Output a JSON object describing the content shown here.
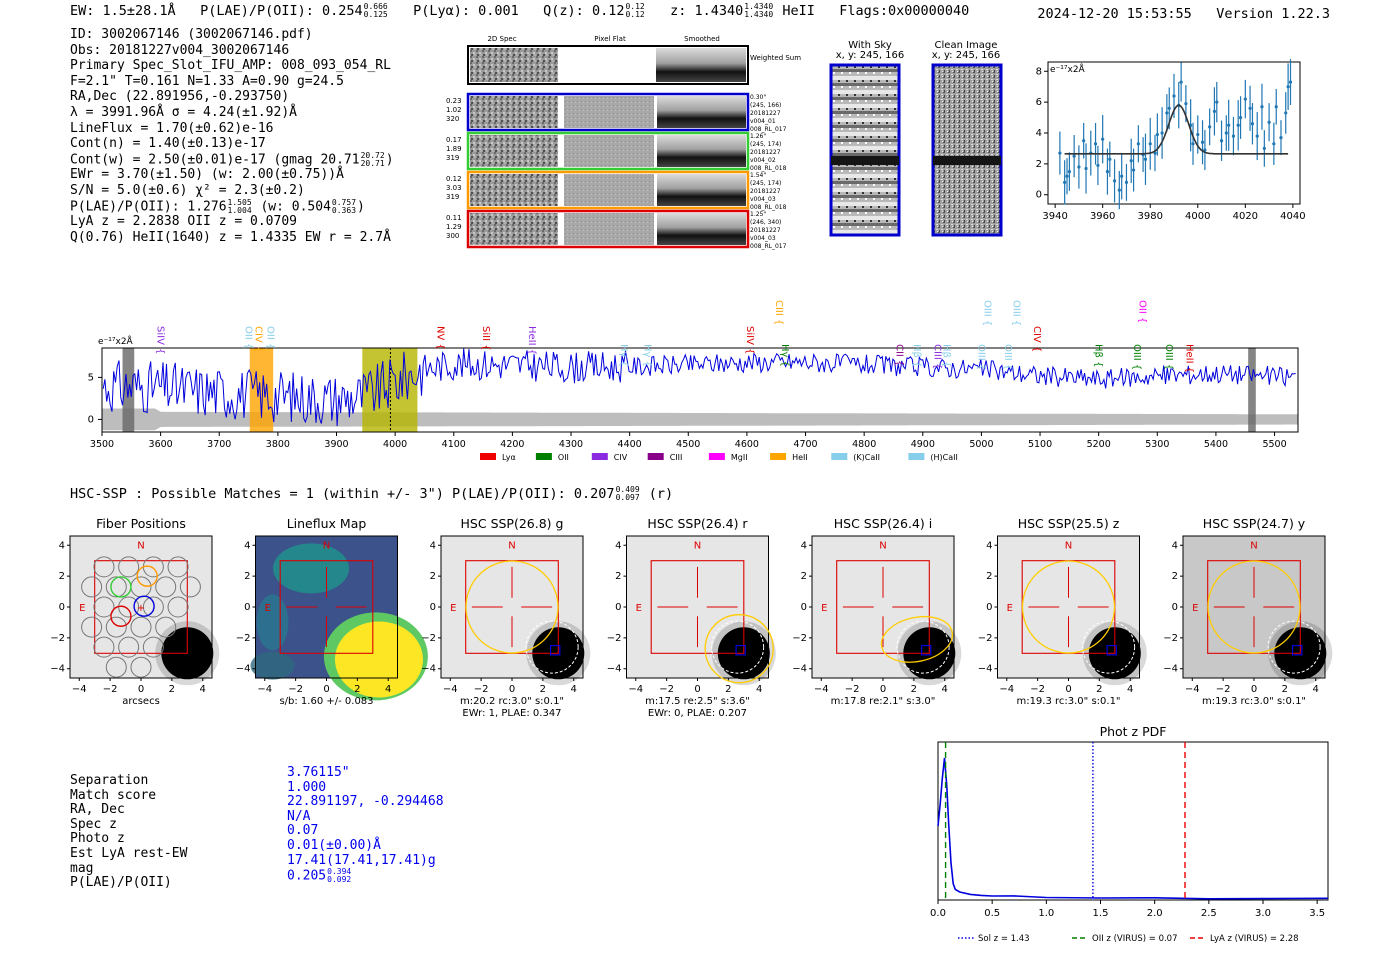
{
  "header": {
    "ew": "EW: 1.5±28.1Å",
    "plae_label": "P(LAE)/P(OII): 0.254",
    "plae_hi": "0.666",
    "plae_lo": "0.125",
    "plya": "P(Lyα): 0.001",
    "qz_label": "Q(z): 0.12",
    "qz_hi": "0.12",
    "qz_lo": "0.12",
    "z_label": "z: 1.4340",
    "z_hi": "1.4340",
    "z_lo": "1.4340",
    "z_tail": "HeII",
    "flags": "Flags:0x00000040",
    "timestamp": "2024-12-20 15:53:55",
    "version": "Version 1.22.3"
  },
  "info": {
    "id": "ID: 3002067146 (3002067146.pdf)",
    "obs": "Obs: 20181227v004_3002067146",
    "primary": "Primary Spec_Slot_IFU_AMP: 008_093_054_RL",
    "fparams": "F=2.1\"  T=0.161  N=1.33  A=0.90  g=24.5",
    "radec": "RA,Dec (22.891956,-0.293750)",
    "lambda": "λ = 3991.96Å  σ = 4.24(±1.92)Å",
    "lineflux": "LineFlux = 1.70(±0.62)e-16",
    "contn": "Cont(n) = 1.40(±0.13)e-17",
    "contw": "Cont(w) = 2.50(±0.01)e-17 (gmag 20.71",
    "contw_hi": "20.72",
    "contw_lo": "20.71",
    "ewr": "EWr = 3.70(±1.50) (w: 2.00(±0.75))Å",
    "sn": "S/N = 5.0(±0.6)  χ² = 2.3(±0.2)",
    "plae": "P(LAE)/P(OII): 1.276",
    "plae_hi": "1.505",
    "plae_lo": "1.004",
    "plae_w": "(w: 0.504",
    "plae_w_hi": "0.757",
    "plae_w_lo": "0.363",
    "lya": "LyA z = 2.2838   OII z = 0.0709",
    "q": "Q(0.76) HeII(1640) z = 1.4335   EW r = 2.7Å"
  },
  "cutouts": {
    "col_labels": [
      "2D Spec",
      "Pixel Flat",
      "Smoothed"
    ],
    "weighted": "Weighted Sum",
    "rows": [
      {
        "left": [
          "0.23",
          "1.02",
          "320"
        ],
        "right": [
          "0.30\"",
          "(245, 166)",
          "20181227",
          "v004_01",
          "008_RL_017"
        ],
        "color": "#0000cc"
      },
      {
        "left": [
          "0.17",
          "1.89",
          "319"
        ],
        "right": [
          "1.26\"",
          "(245, 174)",
          "20181227",
          "v004_02",
          "008_RL_018"
        ],
        "color": "#33cc33"
      },
      {
        "left": [
          "0.12",
          "3.03",
          "319"
        ],
        "right": [
          "1.54\"",
          "(245, 174)",
          "20181227",
          "v004_03",
          "008_RL_018"
        ],
        "color": "#ff9900"
      },
      {
        "left": [
          "0.11",
          "1.29",
          "300"
        ],
        "right": [
          "1.25\"",
          "(246, 340)",
          "20181227",
          "v004_03",
          "008_RL_017"
        ],
        "color": "#dd0000"
      }
    ],
    "with_sky": "With Sky",
    "with_sky_xy": "x, y: 245, 166",
    "clean": "Clean Image",
    "clean_xy": "x, y: 245, 166"
  },
  "zoom_chart": {
    "unit": "e⁻¹⁷x2Å",
    "xticks": [
      "3940",
      "3960",
      "3980",
      "4000",
      "4020",
      "4040"
    ],
    "yticks": [
      "0",
      "2",
      "4",
      "6",
      "8"
    ]
  },
  "chart_data": [
    {
      "type": "scatter",
      "title": "",
      "ylabel": "e⁻¹⁷x2Å",
      "xlim": [
        3937,
        4043
      ],
      "ylim": [
        -0.6,
        8.6
      ],
      "x": [
        3942,
        3944,
        3945,
        3946,
        3948,
        3950,
        3952,
        3953,
        3955,
        3957,
        3958,
        3960,
        3962,
        3963,
        3965,
        3967,
        3968,
        3970,
        3972,
        3973,
        3975,
        3977,
        3978,
        3980,
        3982,
        3983,
        3985,
        3987,
        3988,
        3990,
        3992,
        3993,
        3995,
        3997,
        3998,
        4000,
        4002,
        4003,
        4005,
        4007,
        4008,
        4010,
        4012,
        4013,
        4015,
        4017,
        4018,
        4020,
        4022,
        4023,
        4025,
        4027,
        4028,
        4030,
        4032,
        4033,
        4035,
        4037,
        4038,
        4039
      ],
      "y": [
        2.7,
        0.8,
        1.2,
        1.5,
        2.5,
        1.8,
        3.5,
        1.7,
        2.7,
        3.3,
        1.9,
        3.6,
        1.5,
        2.3,
        0.9,
        0.3,
        1.2,
        0.8,
        2.2,
        1.6,
        3.3,
        2.6,
        2.3,
        3.3,
        2.7,
        3.9,
        4.0,
        5.3,
        5.6,
        6.4,
        5.8,
        7.3,
        5.9,
        4.5,
        3.3,
        3.9,
        3.4,
        2.9,
        4.4,
        5.4,
        6.0,
        3.5,
        4.0,
        4.5,
        3.8,
        4.5,
        5.0,
        6.2,
        5.6,
        4.6,
        3.8,
        5.7,
        3.0,
        4.7,
        3.3,
        5.7,
        3.7,
        5.3,
        7.0,
        7.3
      ],
      "fit_baseline": 2.65,
      "fit_peak": 5.8,
      "fit_center": 3992,
      "fit_sigma": 4.2
    },
    {
      "type": "line",
      "title": "",
      "ylabel": "e⁻¹⁷x2Å",
      "xlim": [
        3500,
        5540
      ],
      "ylim": [
        -1.5,
        8.5
      ],
      "xticks": [
        3500,
        3600,
        3700,
        3800,
        3900,
        4000,
        4100,
        4200,
        4300,
        4400,
        4500,
        4600,
        4700,
        4800,
        4900,
        5000,
        5100,
        5200,
        5300,
        5400,
        5500
      ],
      "yticks": [
        0,
        5
      ],
      "approx_trend": [
        [
          3500,
          4.0
        ],
        [
          3600,
          3.8
        ],
        [
          3700,
          3.2
        ],
        [
          3800,
          2.8
        ],
        [
          3900,
          2.4
        ],
        [
          3950,
          2.8
        ],
        [
          4000,
          4.5
        ],
        [
          4050,
          6.0
        ],
        [
          4100,
          6.6
        ],
        [
          4200,
          6.5
        ],
        [
          4300,
          6.2
        ],
        [
          4400,
          6.3
        ],
        [
          4500,
          6.5
        ],
        [
          4600,
          6.8
        ],
        [
          4700,
          6.8
        ],
        [
          4800,
          6.5
        ],
        [
          4900,
          6.2
        ],
        [
          5000,
          6.0
        ],
        [
          5100,
          5.2
        ],
        [
          5200,
          4.8
        ],
        [
          5300,
          5.2
        ],
        [
          5400,
          5.5
        ],
        [
          5540,
          5.0
        ]
      ],
      "highlight_bands": [
        {
          "from": 3535,
          "to": 3555,
          "color": "#666666"
        },
        {
          "from": 3752,
          "to": 3792,
          "color": "#ffa500"
        },
        {
          "from": 3944,
          "to": 4038,
          "color": "#b5b500"
        },
        {
          "from": 5455,
          "to": 5468,
          "color": "#666666"
        }
      ],
      "marker_line": 3992,
      "line_labels": [
        {
          "name": "SiIV",
          "x": 3595,
          "color": "#8a2be2",
          "row": 1
        },
        {
          "name": "OII",
          "x": 3745,
          "color": "#87ceeb",
          "row": 1
        },
        {
          "name": "CIV",
          "x": 3762,
          "color": "#ffa500",
          "row": 1
        },
        {
          "name": "OII",
          "x": 3782,
          "color": "#87ceeb",
          "row": 1
        },
        {
          "name": "NV",
          "x": 4072,
          "color": "#e00000",
          "row": 1
        },
        {
          "name": "SiII",
          "x": 4150,
          "color": "#e00000",
          "row": 1
        },
        {
          "name": "HeII",
          "x": 4228,
          "color": "#8a2be2",
          "row": 1
        },
        {
          "name": "Hγ",
          "x": 4385,
          "color": "#87ceeb",
          "row": 2
        },
        {
          "name": "Hγ",
          "x": 4425,
          "color": "#87ceeb",
          "row": 2
        },
        {
          "name": "SiIV",
          "x": 4600,
          "color": "#e00000",
          "row": 1
        },
        {
          "name": "CIII",
          "x": 4650,
          "color": "#ffa500",
          "row": 0
        },
        {
          "name": "Hγ",
          "x": 4660,
          "color": "#008000",
          "row": 2
        },
        {
          "name": "CII",
          "x": 4855,
          "color": "#8b008b",
          "row": 2
        },
        {
          "name": "Hβ",
          "x": 4885,
          "color": "#87ceeb",
          "row": 2
        },
        {
          "name": "CIII",
          "x": 4920,
          "color": "#8a2be2",
          "row": 2
        },
        {
          "name": "Hβ",
          "x": 4935,
          "color": "#87ceeb",
          "row": 2
        },
        {
          "name": "OIII",
          "x": 4995,
          "color": "#87ceeb",
          "row": 2
        },
        {
          "name": "OIII",
          "x": 5005,
          "color": "#87ceeb",
          "row": 0
        },
        {
          "name": "OIII",
          "x": 5055,
          "color": "#87ceeb",
          "row": 0
        },
        {
          "name": "OIII",
          "x": 5040,
          "color": "#87ceeb",
          "row": 2
        },
        {
          "name": "CIV",
          "x": 5090,
          "color": "#e00000",
          "row": 1
        },
        {
          "name": "Hβ",
          "x": 5195,
          "color": "#008000",
          "row": 2
        },
        {
          "name": "OII",
          "x": 5270,
          "color": "#ff00ff",
          "row": 0
        },
        {
          "name": "OIII",
          "x": 5260,
          "color": "#008000",
          "row": 2
        },
        {
          "name": "OIII",
          "x": 5315,
          "color": "#008000",
          "row": 2
        },
        {
          "name": "HeII",
          "x": 5350,
          "color": "#e00000",
          "row": 2
        }
      ],
      "legend": [
        {
          "name": "Lyα",
          "color": "#ee0000"
        },
        {
          "name": "OII",
          "color": "#008000"
        },
        {
          "name": "CIV",
          "color": "#8a2be2"
        },
        {
          "name": "CIII",
          "color": "#8b008b"
        },
        {
          "name": "MgII",
          "color": "#ff00ff"
        },
        {
          "name": "HeII",
          "color": "#ffa500"
        },
        {
          "name": "(K)CaII",
          "color": "#87ceeb"
        },
        {
          "name": "(H)CaII",
          "color": "#87ceeb"
        }
      ]
    },
    {
      "type": "line",
      "title": "Phot z PDF",
      "xlim": [
        0,
        3.6
      ],
      "xticks": [
        0.0,
        0.5,
        1.0,
        1.5,
        2.0,
        2.5,
        3.0,
        3.5
      ],
      "points": [
        [
          0.0,
          0.5
        ],
        [
          0.02,
          0.65
        ],
        [
          0.04,
          0.82
        ],
        [
          0.06,
          0.96
        ],
        [
          0.08,
          0.78
        ],
        [
          0.1,
          0.5
        ],
        [
          0.12,
          0.25
        ],
        [
          0.14,
          0.11
        ],
        [
          0.16,
          0.07
        ],
        [
          0.2,
          0.05
        ],
        [
          0.3,
          0.04
        ],
        [
          0.4,
          0.035
        ],
        [
          0.5,
          0.03
        ],
        [
          0.7,
          0.025
        ],
        [
          1.0,
          0.02
        ],
        [
          1.5,
          0.015
        ],
        [
          2.0,
          0.012
        ],
        [
          2.5,
          0.01
        ],
        [
          3.0,
          0.008
        ],
        [
          3.6,
          0.008
        ]
      ],
      "vlines": [
        {
          "x": 1.43,
          "color": "#0000ee",
          "style": "dotted"
        },
        {
          "x": 0.07,
          "color": "#008000",
          "style": "dashed"
        },
        {
          "x": 2.28,
          "color": "#ee0000",
          "style": "dashed"
        }
      ],
      "legend": [
        {
          "name": "Sol z = 1.43",
          "color": "#0000ee"
        },
        {
          "name": "OII z (VIRUS) = 0.07",
          "color": "#008000"
        },
        {
          "name": "LyA z (VIRUS) = 2.28",
          "color": "#ee0000"
        }
      ]
    }
  ],
  "hsc": {
    "summary": "HSC-SSP : Possible Matches = 1 (within +/- 3\")  P(LAE)/P(OII): 0.207",
    "summary_hi": "0.409",
    "summary_lo": "0.097",
    "summary_tail": "(r)",
    "ticks": [
      "4",
      "2",
      "0",
      "−2",
      "−4"
    ],
    "xticks": [
      "−4",
      "−2",
      "0",
      "2",
      "4"
    ],
    "north": "N",
    "east": "E",
    "panels": [
      {
        "title": "Fiber Positions",
        "caption": "arcsecs",
        "caption2": ""
      },
      {
        "title": "Lineflux Map",
        "caption": "s/b: 1.60 +/- 0.083",
        "caption2": ""
      },
      {
        "title": "HSC SSP(26.8) g",
        "caption": "m:20.2 rc:3.0\"  s:0.1\"",
        "caption2": "EWr: 1, PLAE: 0.347"
      },
      {
        "title": "HSC SSP(26.4) r",
        "caption": "m:17.5  re:2.5\"  s:3.6\"",
        "caption2": "EWr: 0, PLAE: 0.207"
      },
      {
        "title": "HSC SSP(26.4) i",
        "caption": "m:17.8  re:2.1\"  s:3.0\"",
        "caption2": ""
      },
      {
        "title": "HSC SSP(25.5) z",
        "caption": "m:19.3 rc:3.0\"  s:0.1\"",
        "caption2": ""
      },
      {
        "title": "HSC SSP(24.7) y",
        "caption": "m:19.3 rc:3.0\"  s:0.1\"",
        "caption2": ""
      }
    ]
  },
  "match": {
    "labels": [
      "Separation",
      "Match score",
      "RA, Dec",
      "Spec z",
      "Photo z",
      "Est LyA rest-EW",
      "mag",
      "P(LAE)/P(OII)"
    ],
    "values": [
      "3.76115\"",
      "1.000",
      "22.891197, -0.294468",
      "N/A",
      "0.07",
      "0.01(±0.00)Å",
      "17.41(17.41,17.41)g",
      "0.205"
    ],
    "plae_hi": "0.394",
    "plae_lo": "0.092"
  },
  "colors": {
    "blue": "#0000cc",
    "spectrum": "#0000dd",
    "error": "#1f77b4"
  }
}
